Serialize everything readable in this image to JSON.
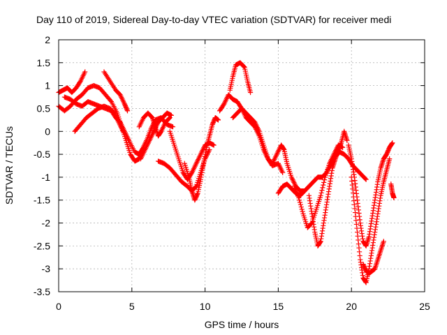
{
  "chart_data": {
    "type": "scatter",
    "title": "Day 110 of 2019, Sidereal Day-to-day VTEC variation (SDTVAR) for receiver medi",
    "xlabel": "GPS time / hours",
    "ylabel": "SDTVAR / TECUs",
    "xlim": [
      0,
      25
    ],
    "ylim": [
      -3.5,
      2
    ],
    "xticks": [
      "0",
      "5",
      "10",
      "15",
      "20",
      "25"
    ],
    "yticks": [
      "2",
      "1.5",
      "1",
      "0.5",
      "0",
      "-0.5",
      "-1",
      "-1.5",
      "-2",
      "-2.5",
      "-3",
      "-3.5"
    ],
    "grid": true,
    "legend": "none",
    "marker": "+",
    "color": "#ff0000",
    "series": [
      {
        "points": [
          [
            0.0,
            0.85
          ],
          [
            0.3,
            0.9
          ],
          [
            0.6,
            0.95
          ],
          [
            0.9,
            0.85
          ],
          [
            1.2,
            0.95
          ],
          [
            1.5,
            1.1
          ],
          [
            1.8,
            1.3
          ]
        ]
      },
      {
        "points": [
          [
            0.0,
            0.55
          ],
          [
            0.4,
            0.45
          ],
          [
            0.8,
            0.55
          ],
          [
            1.2,
            0.7
          ],
          [
            1.6,
            0.8
          ],
          [
            2.0,
            0.95
          ],
          [
            2.4,
            1.0
          ],
          [
            2.8,
            0.95
          ],
          [
            3.2,
            0.8
          ],
          [
            3.6,
            0.65
          ],
          [
            4.0,
            0.4
          ],
          [
            4.3,
            0.1
          ],
          [
            4.6,
            -0.2
          ],
          [
            4.9,
            -0.5
          ],
          [
            5.2,
            -0.65
          ],
          [
            5.5,
            -0.6
          ],
          [
            5.7,
            -0.4
          ],
          [
            6.0,
            -0.2
          ],
          [
            6.3,
            0.05
          ],
          [
            6.6,
            0.25
          ],
          [
            7.0,
            0.3
          ],
          [
            7.4,
            0.15
          ],
          [
            7.8,
            0.1
          ]
        ]
      },
      {
        "points": [
          [
            0.4,
            0.75
          ],
          [
            0.8,
            0.7
          ],
          [
            1.2,
            0.6
          ],
          [
            1.6,
            0.55
          ],
          [
            2.0,
            0.65
          ],
          [
            2.4,
            0.6
          ],
          [
            2.8,
            0.55
          ],
          [
            3.2,
            0.5
          ],
          [
            3.6,
            0.45
          ],
          [
            3.9,
            0.3
          ],
          [
            4.2,
            0.2
          ],
          [
            4.5,
            0.0
          ],
          [
            4.8,
            -0.2
          ],
          [
            5.2,
            -0.45
          ],
          [
            5.5,
            -0.5
          ],
          [
            5.8,
            -0.35
          ]
        ]
      },
      {
        "points": [
          [
            1.1,
            0.0
          ],
          [
            1.5,
            0.15
          ],
          [
            1.9,
            0.3
          ],
          [
            2.3,
            0.4
          ],
          [
            2.7,
            0.5
          ],
          [
            3.1,
            0.55
          ],
          [
            3.5,
            0.5
          ],
          [
            3.8,
            0.4
          ],
          [
            4.1,
            0.2
          ],
          [
            4.4,
            0.0
          ]
        ]
      },
      {
        "points": [
          [
            3.1,
            1.3
          ],
          [
            3.5,
            1.1
          ],
          [
            3.9,
            0.9
          ],
          [
            4.2,
            0.8
          ],
          [
            4.5,
            0.6
          ],
          [
            4.7,
            0.45
          ]
        ]
      },
      {
        "points": [
          [
            5.5,
            0.1
          ],
          [
            5.8,
            0.3
          ],
          [
            6.1,
            0.4
          ],
          [
            6.4,
            0.3
          ],
          [
            6.6,
            0.1
          ],
          [
            6.8,
            -0.1
          ],
          [
            7.0,
            0.0
          ],
          [
            7.3,
            0.2
          ],
          [
            7.6,
            0.3
          ]
        ]
      },
      {
        "points": [
          [
            5.6,
            -0.6
          ],
          [
            5.9,
            -0.4
          ],
          [
            6.2,
            -0.2
          ],
          [
            6.5,
            0.0
          ],
          [
            6.8,
            0.2
          ],
          [
            7.1,
            0.3
          ],
          [
            7.4,
            0.4
          ],
          [
            7.7,
            0.35
          ]
        ]
      },
      {
        "points": [
          [
            6.8,
            -0.65
          ],
          [
            7.2,
            -0.7
          ],
          [
            7.6,
            -0.8
          ],
          [
            8.0,
            -0.95
          ],
          [
            8.4,
            -1.1
          ],
          [
            8.8,
            -1.2
          ],
          [
            9.1,
            -1.3
          ],
          [
            9.4,
            -1.2
          ],
          [
            9.7,
            -0.9
          ],
          [
            10.0,
            -0.6
          ],
          [
            10.3,
            -0.4
          ]
        ]
      },
      {
        "points": [
          [
            7.6,
            0.0
          ],
          [
            7.9,
            -0.3
          ],
          [
            8.2,
            -0.6
          ],
          [
            8.5,
            -0.9
          ],
          [
            8.8,
            -1.05
          ],
          [
            9.1,
            -0.9
          ],
          [
            9.4,
            -0.7
          ],
          [
            9.7,
            -0.5
          ],
          [
            10.0,
            -0.3
          ],
          [
            10.3,
            -0.25
          ],
          [
            10.6,
            -0.3
          ]
        ]
      },
      {
        "points": [
          [
            8.6,
            -0.7
          ],
          [
            8.9,
            -1.0
          ],
          [
            9.1,
            -1.3
          ],
          [
            9.3,
            -1.5
          ],
          [
            9.5,
            -1.35
          ],
          [
            9.7,
            -1.05
          ],
          [
            9.9,
            -0.7
          ],
          [
            10.1,
            -0.35
          ],
          [
            10.3,
            -0.1
          ],
          [
            10.5,
            0.15
          ],
          [
            10.7,
            0.3
          ],
          [
            10.9,
            0.25
          ]
        ]
      },
      {
        "points": [
          [
            11.0,
            0.45
          ],
          [
            11.3,
            0.6
          ],
          [
            11.6,
            0.8
          ],
          [
            11.9,
            0.7
          ],
          [
            12.2,
            0.65
          ],
          [
            12.5,
            0.5
          ],
          [
            12.8,
            0.4
          ],
          [
            13.1,
            0.3
          ],
          [
            13.4,
            0.2
          ],
          [
            13.7,
            0.0
          ],
          [
            14.0,
            -0.3
          ],
          [
            14.3,
            -0.6
          ],
          [
            14.6,
            -0.75
          ],
          [
            15.0,
            -0.7
          ],
          [
            15.3,
            -0.9
          ]
        ]
      },
      {
        "points": [
          [
            11.7,
            0.9
          ],
          [
            11.9,
            1.2
          ],
          [
            12.1,
            1.45
          ],
          [
            12.4,
            1.5
          ],
          [
            12.7,
            1.4
          ],
          [
            12.9,
            1.1
          ],
          [
            13.1,
            0.85
          ]
        ]
      },
      {
        "points": [
          [
            11.9,
            0.3
          ],
          [
            12.2,
            0.4
          ],
          [
            12.5,
            0.5
          ],
          [
            12.8,
            0.3
          ],
          [
            13.1,
            0.2
          ],
          [
            13.4,
            0.1
          ],
          [
            13.7,
            -0.1
          ],
          [
            14.0,
            -0.4
          ],
          [
            14.3,
            -0.6
          ],
          [
            14.6,
            -0.7
          ],
          [
            14.9,
            -0.5
          ],
          [
            15.2,
            -0.3
          ],
          [
            15.4,
            -0.4
          ],
          [
            15.6,
            -0.7
          ],
          [
            15.9,
            -1.0
          ],
          [
            16.2,
            -1.2
          ],
          [
            16.5,
            -1.3
          ],
          [
            16.8,
            -1.3
          ]
        ]
      },
      {
        "points": [
          [
            15.0,
            -1.35
          ],
          [
            15.3,
            -1.2
          ],
          [
            15.6,
            -1.15
          ],
          [
            15.9,
            -1.25
          ],
          [
            16.2,
            -1.35
          ],
          [
            16.5,
            -1.4
          ],
          [
            16.8,
            -1.3
          ],
          [
            17.1,
            -1.2
          ],
          [
            17.4,
            -1.1
          ],
          [
            17.7,
            -1.0
          ],
          [
            18.0,
            -1.0
          ],
          [
            18.3,
            -0.9
          ],
          [
            18.6,
            -0.7
          ],
          [
            18.9,
            -0.55
          ],
          [
            19.2,
            -0.45
          ],
          [
            19.5,
            -0.5
          ],
          [
            19.8,
            -0.6
          ],
          [
            20.1,
            -0.75
          ],
          [
            20.4,
            -0.85
          ],
          [
            20.7,
            -0.95
          ],
          [
            21.0,
            -1.05
          ]
        ]
      },
      {
        "points": [
          [
            16.1,
            -1.2
          ],
          [
            16.4,
            -1.45
          ],
          [
            16.7,
            -1.8
          ],
          [
            17.0,
            -2.1
          ],
          [
            17.3,
            -2.0
          ],
          [
            17.6,
            -1.7
          ],
          [
            17.9,
            -1.4
          ],
          [
            18.2,
            -1.0
          ],
          [
            18.5,
            -0.7
          ],
          [
            18.8,
            -0.5
          ],
          [
            19.1,
            -0.3
          ],
          [
            19.4,
            -0.35
          ]
        ]
      },
      {
        "points": [
          [
            17.1,
            -1.4
          ],
          [
            17.3,
            -1.8
          ],
          [
            17.5,
            -2.2
          ],
          [
            17.7,
            -2.5
          ],
          [
            17.9,
            -2.4
          ],
          [
            18.1,
            -2.0
          ],
          [
            18.3,
            -1.6
          ],
          [
            18.5,
            -1.2
          ],
          [
            18.7,
            -0.8
          ],
          [
            18.9,
            -0.6
          ],
          [
            19.1,
            -0.4
          ],
          [
            19.3,
            -0.25
          ],
          [
            19.5,
            0.0
          ],
          [
            19.7,
            -0.2
          ]
        ]
      },
      {
        "points": [
          [
            19.8,
            -0.3
          ],
          [
            20.0,
            -0.6
          ],
          [
            20.2,
            -1.0
          ],
          [
            20.4,
            -1.5
          ],
          [
            20.6,
            -2.0
          ],
          [
            20.8,
            -2.4
          ],
          [
            21.0,
            -2.5
          ],
          [
            21.2,
            -2.3
          ],
          [
            21.4,
            -1.9
          ],
          [
            21.6,
            -1.5
          ],
          [
            21.8,
            -1.1
          ],
          [
            22.0,
            -0.8
          ],
          [
            22.2,
            -0.6
          ],
          [
            22.4,
            -0.5
          ],
          [
            22.6,
            -0.35
          ],
          [
            22.8,
            -0.25
          ]
        ]
      },
      {
        "points": [
          [
            20.0,
            -1.0
          ],
          [
            20.2,
            -1.6
          ],
          [
            20.4,
            -2.2
          ],
          [
            20.6,
            -2.8
          ],
          [
            20.8,
            -3.2
          ],
          [
            21.0,
            -3.3
          ],
          [
            21.2,
            -3.0
          ],
          [
            21.4,
            -2.6
          ],
          [
            21.6,
            -2.2
          ],
          [
            21.8,
            -1.8
          ],
          [
            22.0,
            -1.4
          ],
          [
            22.2,
            -1.1
          ],
          [
            22.4,
            -0.85
          ],
          [
            22.6,
            -0.6
          ]
        ]
      },
      {
        "points": [
          [
            20.8,
            -2.9
          ],
          [
            21.0,
            -3.05
          ],
          [
            21.2,
            -3.1
          ],
          [
            21.4,
            -3.05
          ],
          [
            21.6,
            -3.0
          ],
          [
            21.8,
            -2.8
          ],
          [
            22.0,
            -2.6
          ],
          [
            22.2,
            -2.4
          ]
        ]
      },
      {
        "points": [
          [
            22.7,
            -1.15
          ],
          [
            22.8,
            -1.35
          ],
          [
            22.9,
            -1.45
          ]
        ]
      }
    ]
  }
}
